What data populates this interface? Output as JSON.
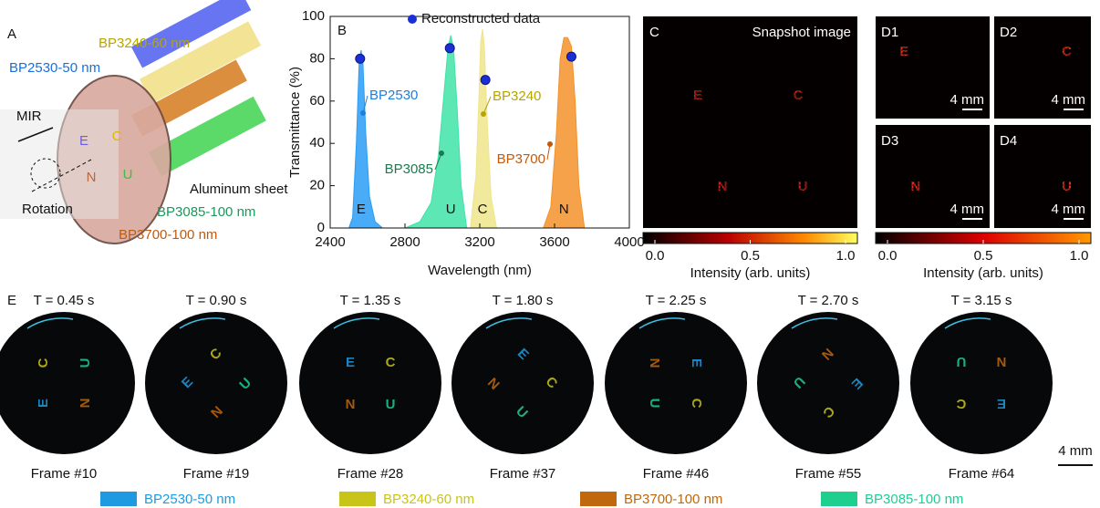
{
  "panel_a": {
    "label": "A",
    "filters": [
      "BP2530-50 nm",
      "BP3240-60 nm",
      "BP3085-100 nm",
      "BP3700-100 nm"
    ],
    "mir": "MIR",
    "rotation": "Rotation",
    "sheet": "Aluminum sheet",
    "letters": [
      "E",
      "C",
      "N",
      "U"
    ]
  },
  "chart_data": {
    "type": "area",
    "label": "B",
    "xlabel": "Wavelength (nm)",
    "ylabel": "Transmittance (%)",
    "xlim": [
      2400,
      4000
    ],
    "xticks": [
      2400,
      2800,
      3200,
      3600,
      4000
    ],
    "ylim": [
      0,
      100
    ],
    "yticks": [
      0,
      20,
      40,
      60,
      80,
      100
    ],
    "series": [
      {
        "name": "BP2530",
        "letter": "E",
        "color": "#2a9df4",
        "x": [
          2500,
          2520,
          2540,
          2555,
          2565,
          2575,
          2590,
          2610,
          2640,
          2680
        ],
        "values": [
          0,
          5,
          40,
          78,
          84,
          78,
          45,
          15,
          3,
          0
        ]
      },
      {
        "name": "BP3085",
        "letter": "U",
        "color": "#3fe3a8",
        "x": [
          2800,
          2880,
          2940,
          2980,
          3010,
          3030,
          3045,
          3060,
          3080,
          3100,
          3130
        ],
        "values": [
          0,
          3,
          12,
          35,
          65,
          85,
          91,
          85,
          55,
          20,
          0
        ]
      },
      {
        "name": "BP3240",
        "letter": "C",
        "color": "#efe58a",
        "x": [
          3150,
          3180,
          3195,
          3205,
          3215,
          3225,
          3240,
          3260,
          3290
        ],
        "values": [
          0,
          25,
          60,
          88,
          94,
          85,
          50,
          15,
          0
        ]
      },
      {
        "name": "BP3700",
        "letter": "N",
        "color": "#f3922a",
        "x": [
          3540,
          3580,
          3610,
          3630,
          3650,
          3670,
          3690,
          3710,
          3730,
          3760
        ],
        "values": [
          0,
          10,
          45,
          80,
          90,
          90,
          86,
          60,
          20,
          0
        ]
      }
    ],
    "markers": {
      "name": "Reconstructed data",
      "color": "#1a2fd6",
      "x": [
        2560,
        3040,
        3230,
        3690
      ],
      "values": [
        80,
        85,
        70,
        81
      ]
    }
  },
  "panel_c": {
    "label": "C",
    "title": "Snapshot image",
    "letters": [
      "E",
      "C",
      "N",
      "U"
    ],
    "colorbar": {
      "lim": [
        0,
        1
      ],
      "ticks": [
        {
          "value": 0,
          "label": "0.0"
        },
        {
          "value": 0.5,
          "label": "0.5"
        },
        {
          "value": 1,
          "label": "1.0"
        }
      ],
      "label": "Intensity (arb. units)"
    }
  },
  "panel_d": {
    "subpanels": [
      {
        "label": "D1",
        "letter": "E"
      },
      {
        "label": "D2",
        "letter": "C"
      },
      {
        "label": "D3",
        "letter": "N"
      },
      {
        "label": "D4",
        "letter": "U"
      }
    ],
    "scale_bar": "4 mm",
    "colorbar": {
      "lim": [
        0,
        1
      ],
      "ticks": [
        {
          "value": 0,
          "label": "0.0"
        },
        {
          "value": 0.5,
          "label": "0.5"
        },
        {
          "value": 1,
          "label": "1.0"
        }
      ],
      "label": "Intensity (arb. units)"
    }
  },
  "panel_e": {
    "label": "E",
    "letters": [
      "E",
      "C",
      "N",
      "U"
    ],
    "scale_bar": "4 mm",
    "frames": [
      {
        "time": "T = 0.45 s",
        "frame": "Frame #10"
      },
      {
        "time": "T = 0.90 s",
        "frame": "Frame #19"
      },
      {
        "time": "T = 1.35 s",
        "frame": "Frame #28"
      },
      {
        "time": "T = 1.80 s",
        "frame": "Frame #37"
      },
      {
        "time": "T = 2.25 s",
        "frame": "Frame #46"
      },
      {
        "time": "T = 2.70 s",
        "frame": "Frame #55"
      },
      {
        "time": "T = 3.15 s",
        "frame": "Frame #64"
      }
    ],
    "legend": [
      {
        "name": "BP2530-50 nm",
        "color": "#1e9be0"
      },
      {
        "name": "BP3240-60 nm",
        "color": "#c8c41a"
      },
      {
        "name": "BP3700-100 nm",
        "color": "#c0680e"
      },
      {
        "name": "BP3085-100 nm",
        "color": "#1ecf90"
      }
    ]
  }
}
